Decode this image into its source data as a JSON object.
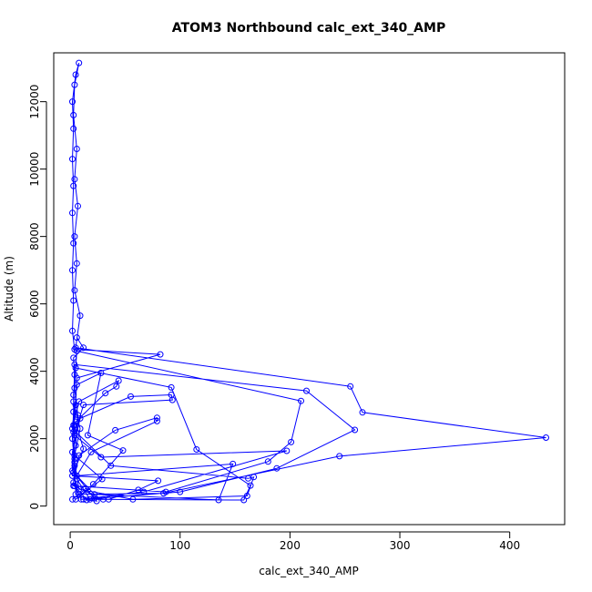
{
  "chart_data": {
    "type": "scatter",
    "title": "ATOM3 Northbound calc_ext_340_AMP",
    "xlabel": "calc_ext_340_AMP",
    "ylabel": "Altitude (m)",
    "xlim": [
      -15,
      450
    ],
    "ylim": [
      -550,
      13450
    ],
    "xticks": [
      0,
      100,
      200,
      300,
      400
    ],
    "yticks": [
      0,
      2000,
      4000,
      6000,
      8000,
      10000,
      12000
    ],
    "grid": false,
    "legend": "none",
    "color": "#0000ff",
    "series": [
      {
        "values": [
          {
            "x": 2,
            "y": 200
          },
          {
            "x": 8,
            "y": 350
          },
          {
            "x": 14,
            "y": 520
          },
          {
            "x": 22,
            "y": 230
          },
          {
            "x": 35,
            "y": 200
          },
          {
            "x": 62,
            "y": 480
          },
          {
            "x": 80,
            "y": 750
          },
          {
            "x": 2,
            "y": 900
          },
          {
            "x": 4,
            "y": 1400
          },
          {
            "x": 3,
            "y": 2200
          },
          {
            "x": 5,
            "y": 3000
          },
          {
            "x": 6,
            "y": 3800
          },
          {
            "x": 82,
            "y": 4500
          },
          {
            "x": 4,
            "y": 4650
          },
          {
            "x": 2,
            "y": 5200
          },
          {
            "x": 3,
            "y": 6100
          },
          {
            "x": 2,
            "y": 7000
          },
          {
            "x": 3,
            "y": 7800
          },
          {
            "x": 2,
            "y": 8700
          },
          {
            "x": 3,
            "y": 9500
          },
          {
            "x": 2,
            "y": 10300
          },
          {
            "x": 3,
            "y": 11200
          },
          {
            "x": 2,
            "y": 12000
          },
          {
            "x": 5,
            "y": 12800
          },
          {
            "x": 8,
            "y": 13150
          },
          {
            "x": 4,
            "y": 12500
          },
          {
            "x": 3,
            "y": 11600
          },
          {
            "x": 6,
            "y": 10600
          },
          {
            "x": 4,
            "y": 9700
          },
          {
            "x": 7,
            "y": 8900
          },
          {
            "x": 4,
            "y": 8000
          },
          {
            "x": 6,
            "y": 7200
          },
          {
            "x": 4,
            "y": 6400
          },
          {
            "x": 9,
            "y": 5650
          },
          {
            "x": 5,
            "y": 4700
          },
          {
            "x": 255,
            "y": 3550
          },
          {
            "x": 266,
            "y": 2780
          },
          {
            "x": 433,
            "y": 2030
          },
          {
            "x": 245,
            "y": 1480
          },
          {
            "x": 85,
            "y": 380
          },
          {
            "x": 5,
            "y": 350
          },
          {
            "x": 4,
            "y": 1200
          },
          {
            "x": 2,
            "y": 2000
          },
          {
            "x": 3,
            "y": 2800
          },
          {
            "x": 4,
            "y": 4200
          },
          {
            "x": 215,
            "y": 3420
          },
          {
            "x": 259,
            "y": 2260
          },
          {
            "x": 188,
            "y": 1120
          },
          {
            "x": 100,
            "y": 420
          },
          {
            "x": 12,
            "y": 200
          },
          {
            "x": 30,
            "y": 200
          },
          {
            "x": 3,
            "y": 600
          },
          {
            "x": 5,
            "y": 1800
          },
          {
            "x": 7,
            "y": 2700
          },
          {
            "x": 4,
            "y": 3500
          },
          {
            "x": 6,
            "y": 4600
          },
          {
            "x": 210,
            "y": 3120
          },
          {
            "x": 201,
            "y": 1900
          },
          {
            "x": 180,
            "y": 1320
          },
          {
            "x": 87,
            "y": 420
          },
          {
            "x": 4,
            "y": 600
          },
          {
            "x": 15,
            "y": 180
          },
          {
            "x": 24,
            "y": 150
          },
          {
            "x": 2,
            "y": 1050
          },
          {
            "x": 4,
            "y": 2400
          },
          {
            "x": 3,
            "y": 3300
          },
          {
            "x": 5,
            "y": 4100
          },
          {
            "x": 92,
            "y": 3520
          },
          {
            "x": 115,
            "y": 1680
          },
          {
            "x": 164,
            "y": 610
          },
          {
            "x": 158,
            "y": 180
          },
          {
            "x": 18,
            "y": 200
          },
          {
            "x": 6,
            "y": 800
          },
          {
            "x": 2,
            "y": 1600
          },
          {
            "x": 9,
            "y": 2600
          },
          {
            "x": 55,
            "y": 3250
          },
          {
            "x": 92,
            "y": 3300
          },
          {
            "x": 93,
            "y": 3150
          },
          {
            "x": 12,
            "y": 3000
          },
          {
            "x": 4,
            "y": 2100
          },
          {
            "x": 28,
            "y": 1450
          },
          {
            "x": 197,
            "y": 1640
          },
          {
            "x": 67,
            "y": 420
          },
          {
            "x": 10,
            "y": 200
          },
          {
            "x": 3,
            "y": 700
          },
          {
            "x": 8,
            "y": 1500
          },
          {
            "x": 41,
            "y": 2250
          },
          {
            "x": 79,
            "y": 2620
          },
          {
            "x": 79,
            "y": 2520
          },
          {
            "x": 19,
            "y": 1600
          },
          {
            "x": 6,
            "y": 900
          },
          {
            "x": 148,
            "y": 1250
          },
          {
            "x": 135,
            "y": 180
          },
          {
            "x": 22,
            "y": 350
          },
          {
            "x": 3,
            "y": 1000
          },
          {
            "x": 12,
            "y": 1700
          },
          {
            "x": 5,
            "y": 2500
          },
          {
            "x": 32,
            "y": 3350
          },
          {
            "x": 42,
            "y": 3550
          },
          {
            "x": 44,
            "y": 3720
          },
          {
            "x": 8,
            "y": 3100
          },
          {
            "x": 2,
            "y": 2300
          },
          {
            "x": 37,
            "y": 1200
          },
          {
            "x": 162,
            "y": 820
          },
          {
            "x": 167,
            "y": 860
          },
          {
            "x": 161,
            "y": 300
          },
          {
            "x": 57,
            "y": 200
          },
          {
            "x": 8,
            "y": 500
          },
          {
            "x": 4,
            "y": 1300
          },
          {
            "x": 3,
            "y": 2400
          },
          {
            "x": 6,
            "y": 3600
          },
          {
            "x": 28,
            "y": 3950
          },
          {
            "x": 16,
            "y": 2100
          },
          {
            "x": 48,
            "y": 1650
          },
          {
            "x": 21,
            "y": 650
          },
          {
            "x": 5,
            "y": 200
          },
          {
            "x": 29,
            "y": 800
          },
          {
            "x": 4,
            "y": 1500
          },
          {
            "x": 9,
            "y": 2300
          },
          {
            "x": 3,
            "y": 3100
          },
          {
            "x": 4,
            "y": 3900
          },
          {
            "x": 3,
            "y": 4400
          },
          {
            "x": 12,
            "y": 4700
          },
          {
            "x": 6,
            "y": 5000
          }
        ]
      }
    ]
  }
}
